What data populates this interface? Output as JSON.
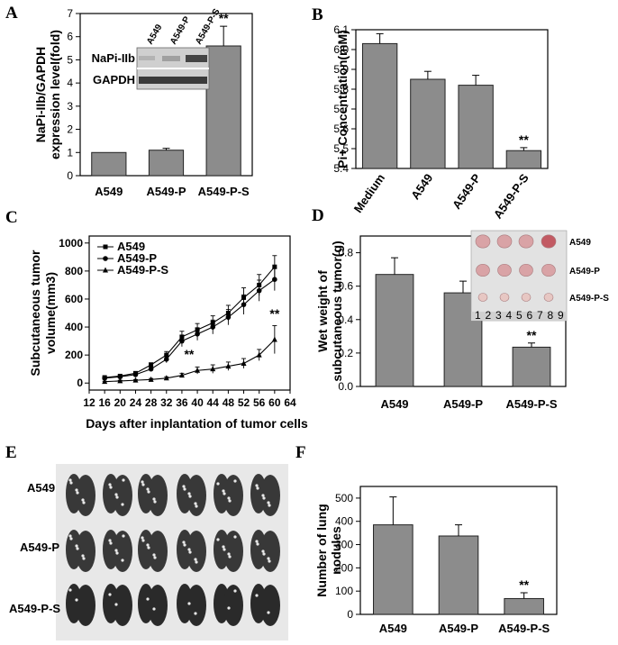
{
  "colors": {
    "bar": "#8c8c8c",
    "bar_stroke": "#222222",
    "photo_bg": "#e6e6e6",
    "tumor": "#d9a3a6",
    "blot_bg": "#cfcfcf"
  },
  "chart_data": [
    {
      "id": "A",
      "panel": "A",
      "type": "bar",
      "categories": [
        "A549",
        "A549-P",
        "A549-P-S"
      ],
      "values": [
        1.0,
        1.1,
        5.6
      ],
      "errors": [
        0,
        0.08,
        0.85
      ],
      "significance": [
        "",
        "",
        "**"
      ],
      "ylabel_lines": [
        "NaPi-IIb/GAPDH",
        "expression level(fold)"
      ],
      "ylim": [
        0,
        7
      ],
      "yticks": [
        0,
        1,
        2,
        3,
        4,
        5,
        6,
        7
      ],
      "inset": {
        "lanes": [
          "A549",
          "A549-P",
          "A549-P-S"
        ],
        "rows": [
          "NaPi-IIb",
          "GAPDH"
        ]
      }
    },
    {
      "id": "B",
      "panel": "B",
      "type": "bar",
      "categories": [
        "Medium",
        "A549",
        "A549-P",
        "A549-P-S"
      ],
      "values": [
        6.03,
        5.85,
        5.82,
        5.49
      ],
      "errors": [
        0.05,
        0.04,
        0.05,
        0.015
      ],
      "significance": [
        "",
        "",
        "",
        "**"
      ],
      "ylabel_lines": [
        "Pi+ Concentration(mM)"
      ],
      "ylim": [
        5.4,
        6.1
      ],
      "yticks": [
        "5.4",
        "5.5",
        "5.6",
        "5.7",
        "5.8",
        "5.9",
        "6.0",
        "6.1"
      ]
    },
    {
      "id": "C",
      "panel": "C",
      "type": "line",
      "x": [
        16,
        20,
        24,
        28,
        32,
        36,
        40,
        44,
        48,
        52,
        56,
        60
      ],
      "series": [
        {
          "name": "A549",
          "marker": "square",
          "values": [
            40,
            50,
            70,
            130,
            200,
            330,
            380,
            430,
            500,
            610,
            700,
            830
          ],
          "errors": [
            5,
            8,
            10,
            15,
            25,
            40,
            45,
            50,
            55,
            70,
            75,
            80
          ]
        },
        {
          "name": "A549-P",
          "marker": "circle",
          "values": [
            35,
            45,
            60,
            100,
            170,
            300,
            350,
            400,
            470,
            560,
            660,
            740
          ],
          "errors": [
            5,
            8,
            10,
            15,
            25,
            40,
            45,
            50,
            55,
            70,
            75,
            80
          ]
        },
        {
          "name": "A549-P-S",
          "marker": "triangle",
          "values": [
            10,
            15,
            20,
            25,
            35,
            55,
            90,
            100,
            120,
            140,
            200,
            310
          ],
          "errors": [
            3,
            5,
            5,
            8,
            10,
            15,
            25,
            30,
            30,
            35,
            40,
            100
          ]
        }
      ],
      "annotations": [
        {
          "x": 36,
          "y": 200,
          "text": "**"
        },
        {
          "x": 60,
          "y": 490,
          "text": "**"
        }
      ],
      "ylabel_lines": [
        "Subcutaneous tumor",
        "volume(mm3)"
      ],
      "xlabel": "Days after inplantation of tumor cells",
      "xlim": [
        12,
        64
      ],
      "ylim": [
        -50,
        1050
      ],
      "xticks": [
        12,
        16,
        20,
        24,
        28,
        32,
        36,
        40,
        44,
        48,
        52,
        56,
        60,
        64
      ],
      "yticks": [
        0,
        200,
        400,
        600,
        800,
        1000
      ]
    },
    {
      "id": "D",
      "panel": "D",
      "type": "bar",
      "categories": [
        "A549",
        "A549-P",
        "A549-P-S"
      ],
      "values": [
        0.67,
        0.56,
        0.235
      ],
      "errors": [
        0.1,
        0.07,
        0.025
      ],
      "significance": [
        "",
        "",
        "**"
      ],
      "ylabel_lines": [
        "Wet weight of",
        "subcutaneous tumor(g)"
      ],
      "ylim": [
        0,
        0.9
      ],
      "yticks": [
        "0.0",
        "0.2",
        "0.4",
        "0.6",
        "0.8"
      ],
      "photo_labels": [
        "A549",
        "A549-P",
        "A549-P-S"
      ],
      "ruler_numbers": [
        "1",
        "2",
        "3",
        "4",
        "5",
        "6",
        "7",
        "8",
        "9"
      ]
    },
    {
      "id": "E",
      "panel": "E",
      "type": "image",
      "row_labels": [
        "A549",
        "A549-P",
        "A549-P-S"
      ]
    },
    {
      "id": "F",
      "panel": "F",
      "type": "bar",
      "categories": [
        "A549",
        "A549-P",
        "A549-P-S"
      ],
      "values": [
        385,
        337,
        68
      ],
      "errors": [
        120,
        48,
        25
      ],
      "significance": [
        "",
        "",
        "**"
      ],
      "ylabel_lines": [
        "Number of lung",
        "nodules"
      ],
      "ylim": [
        0,
        550
      ],
      "yticks": [
        0,
        100,
        200,
        300,
        400,
        500
      ]
    }
  ]
}
